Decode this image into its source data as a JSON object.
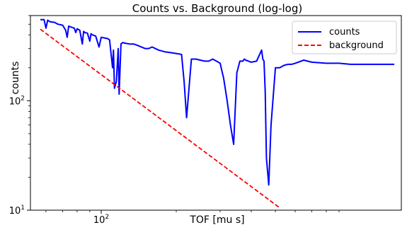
{
  "chart_data": {
    "type": "line",
    "title": "Counts vs. Background (log-log)",
    "xlabel": "TOF [mu s]",
    "ylabel": "counts",
    "xscale": "log",
    "yscale": "log",
    "xlim": [
      52,
      1600
    ],
    "ylim": [
      10,
      600
    ],
    "x_ticks": [
      {
        "value": 100,
        "label": "10^2"
      }
    ],
    "y_ticks": [
      {
        "value": 10,
        "label": "10^1"
      },
      {
        "value": 100,
        "label": "10^2"
      }
    ],
    "grid": false,
    "legend": {
      "placement": "top-right"
    },
    "series": [
      {
        "name": "counts",
        "color": "#0000ff",
        "style": "solid",
        "x": [
          57,
          59,
          60,
          61,
          62,
          63,
          65,
          67,
          70,
          72,
          73,
          74,
          76,
          78,
          79,
          80,
          82,
          84,
          85,
          86,
          88,
          90,
          91,
          92,
          95,
          98,
          100,
          103,
          106,
          108,
          111,
          112,
          113,
          115,
          117,
          118,
          120,
          122,
          125,
          130,
          135,
          140,
          145,
          150,
          155,
          160,
          170,
          180,
          190,
          200,
          210,
          215,
          220,
          230,
          240,
          250,
          260,
          270,
          280,
          290,
          300,
          310,
          320,
          330,
          340,
          350,
          360,
          370,
          375,
          380,
          390,
          400,
          420,
          440,
          445,
          450,
          455,
          460,
          470,
          480,
          500,
          520,
          540,
          560,
          580,
          600,
          650,
          700,
          800,
          900,
          1000,
          1200,
          1400,
          1500
        ],
        "y": [
          550,
          550,
          460,
          545,
          530,
          525,
          520,
          500,
          490,
          440,
          380,
          480,
          470,
          460,
          420,
          455,
          440,
          330,
          430,
          420,
          415,
          350,
          410,
          400,
          390,
          310,
          380,
          375,
          370,
          360,
          200,
          290,
          130,
          150,
          300,
          115,
          330,
          340,
          335,
          330,
          330,
          320,
          310,
          300,
          300,
          310,
          290,
          280,
          275,
          270,
          265,
          150,
          70,
          240,
          240,
          235,
          230,
          230,
          240,
          230,
          220,
          160,
          100,
          60,
          40,
          180,
          230,
          230,
          240,
          235,
          230,
          225,
          230,
          290,
          240,
          230,
          120,
          30,
          17,
          60,
          200,
          200,
          210,
          215,
          215,
          220,
          235,
          225,
          220,
          220,
          215,
          215,
          215,
          215
        ]
      },
      {
        "name": "background",
        "color": "#ff0000",
        "style": "dashed",
        "x": [
          57,
          515
        ],
        "y": [
          450,
          10.7
        ]
      }
    ]
  }
}
